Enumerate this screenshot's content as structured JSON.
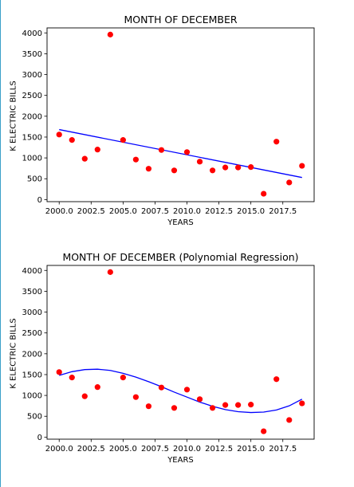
{
  "chart_data": [
    {
      "type": "scatter",
      "title": "MONTH OF DECEMBER",
      "xlabel": "YEARS",
      "ylabel": "K ELECTRIC BILLS",
      "xlim": [
        1999.05,
        2019.95
      ],
      "ylim": [
        -50,
        4120
      ],
      "x_ticks": [
        "2000.0",
        "2002.5",
        "2005.0",
        "2007.5",
        "2010.0",
        "2012.5",
        "2015.0",
        "2017.5"
      ],
      "y_ticks": [
        "0",
        "500",
        "1000",
        "1500",
        "2000",
        "2500",
        "3000",
        "3500",
        "4000"
      ],
      "points": {
        "x": [
          2000,
          2001,
          2002,
          2003,
          2004,
          2005,
          2006,
          2007,
          2008,
          2009,
          2010,
          2011,
          2012,
          2013,
          2014,
          2015,
          2016,
          2017,
          2018,
          2019
        ],
        "y": [
          1560,
          1430,
          980,
          1200,
          3960,
          1430,
          960,
          740,
          1190,
          700,
          1140,
          910,
          700,
          770,
          770,
          780,
          140,
          1390,
          410,
          810
        ],
        "color": "#ff0000"
      },
      "fit": {
        "kind": "linear",
        "x": [
          2000,
          2019
        ],
        "y": [
          1680,
          530
        ],
        "color": "#0000ff"
      }
    },
    {
      "type": "scatter",
      "title": "MONTH OF DECEMBER (Polynomial Regression)",
      "xlabel": "YEARS",
      "ylabel": "K ELECTRIC BILLS",
      "xlim": [
        1999.05,
        2019.95
      ],
      "ylim": [
        -50,
        4120
      ],
      "x_ticks": [
        "2000.0",
        "2002.5",
        "2005.0",
        "2007.5",
        "2010.0",
        "2012.5",
        "2015.0",
        "2017.5"
      ],
      "y_ticks": [
        "0",
        "500",
        "1000",
        "1500",
        "2000",
        "2500",
        "3000",
        "3500",
        "4000"
      ],
      "points": {
        "x": [
          2000,
          2001,
          2002,
          2003,
          2004,
          2005,
          2006,
          2007,
          2008,
          2009,
          2010,
          2011,
          2012,
          2013,
          2014,
          2015,
          2016,
          2017,
          2018,
          2019
        ],
        "y": [
          1560,
          1430,
          980,
          1200,
          3960,
          1430,
          960,
          740,
          1190,
          700,
          1140,
          910,
          700,
          770,
          770,
          780,
          140,
          1390,
          410,
          810
        ],
        "color": "#ff0000"
      },
      "fit": {
        "kind": "polynomial",
        "x": [
          2000,
          2001,
          2002,
          2003,
          2004,
          2005,
          2006,
          2007,
          2008,
          2009,
          2010,
          2011,
          2012,
          2013,
          2014,
          2015,
          2016,
          2017,
          2018,
          2019
        ],
        "y": [
          1480,
          1570,
          1620,
          1630,
          1600,
          1530,
          1440,
          1330,
          1210,
          1080,
          960,
          840,
          740,
          660,
          610,
          590,
          600,
          650,
          750,
          910
        ],
        "color": "#0000ff"
      }
    }
  ]
}
